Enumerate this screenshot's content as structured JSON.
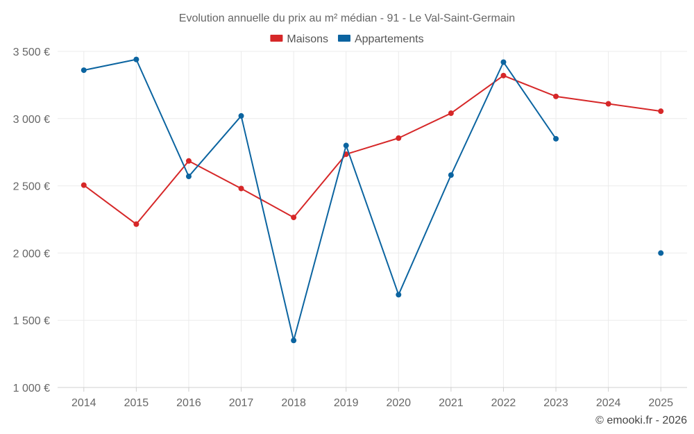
{
  "chart_data": {
    "type": "line",
    "title": "Evolution annuelle du prix au m² médian - 91 - Le Val-Saint-Germain",
    "xlabel": "",
    "ylabel": "",
    "categories": [
      "2014",
      "2015",
      "2016",
      "2017",
      "2018",
      "2019",
      "2020",
      "2021",
      "2022",
      "2023",
      "2024",
      "2025"
    ],
    "y_ticks": [
      "1 000 €",
      "1 500 €",
      "2 000 €",
      "2 500 €",
      "3 000 €",
      "3 500 €"
    ],
    "y_tick_values": [
      1000,
      1500,
      2000,
      2500,
      3000,
      3500
    ],
    "ylim": [
      1000,
      3500
    ],
    "grid": true,
    "legend_position": "top-center",
    "series": [
      {
        "name": "Maisons",
        "color": "#d62728",
        "values": [
          2505,
          2215,
          2685,
          2480,
          2265,
          2735,
          2855,
          3040,
          3320,
          3165,
          3110,
          3055
        ]
      },
      {
        "name": "Appartements",
        "color": "#0b64a0",
        "values": [
          3360,
          3440,
          2570,
          3020,
          1350,
          2800,
          1690,
          2580,
          3420,
          2850,
          null,
          2000
        ]
      }
    ]
  },
  "credit": "© emooki.fr - 2026"
}
